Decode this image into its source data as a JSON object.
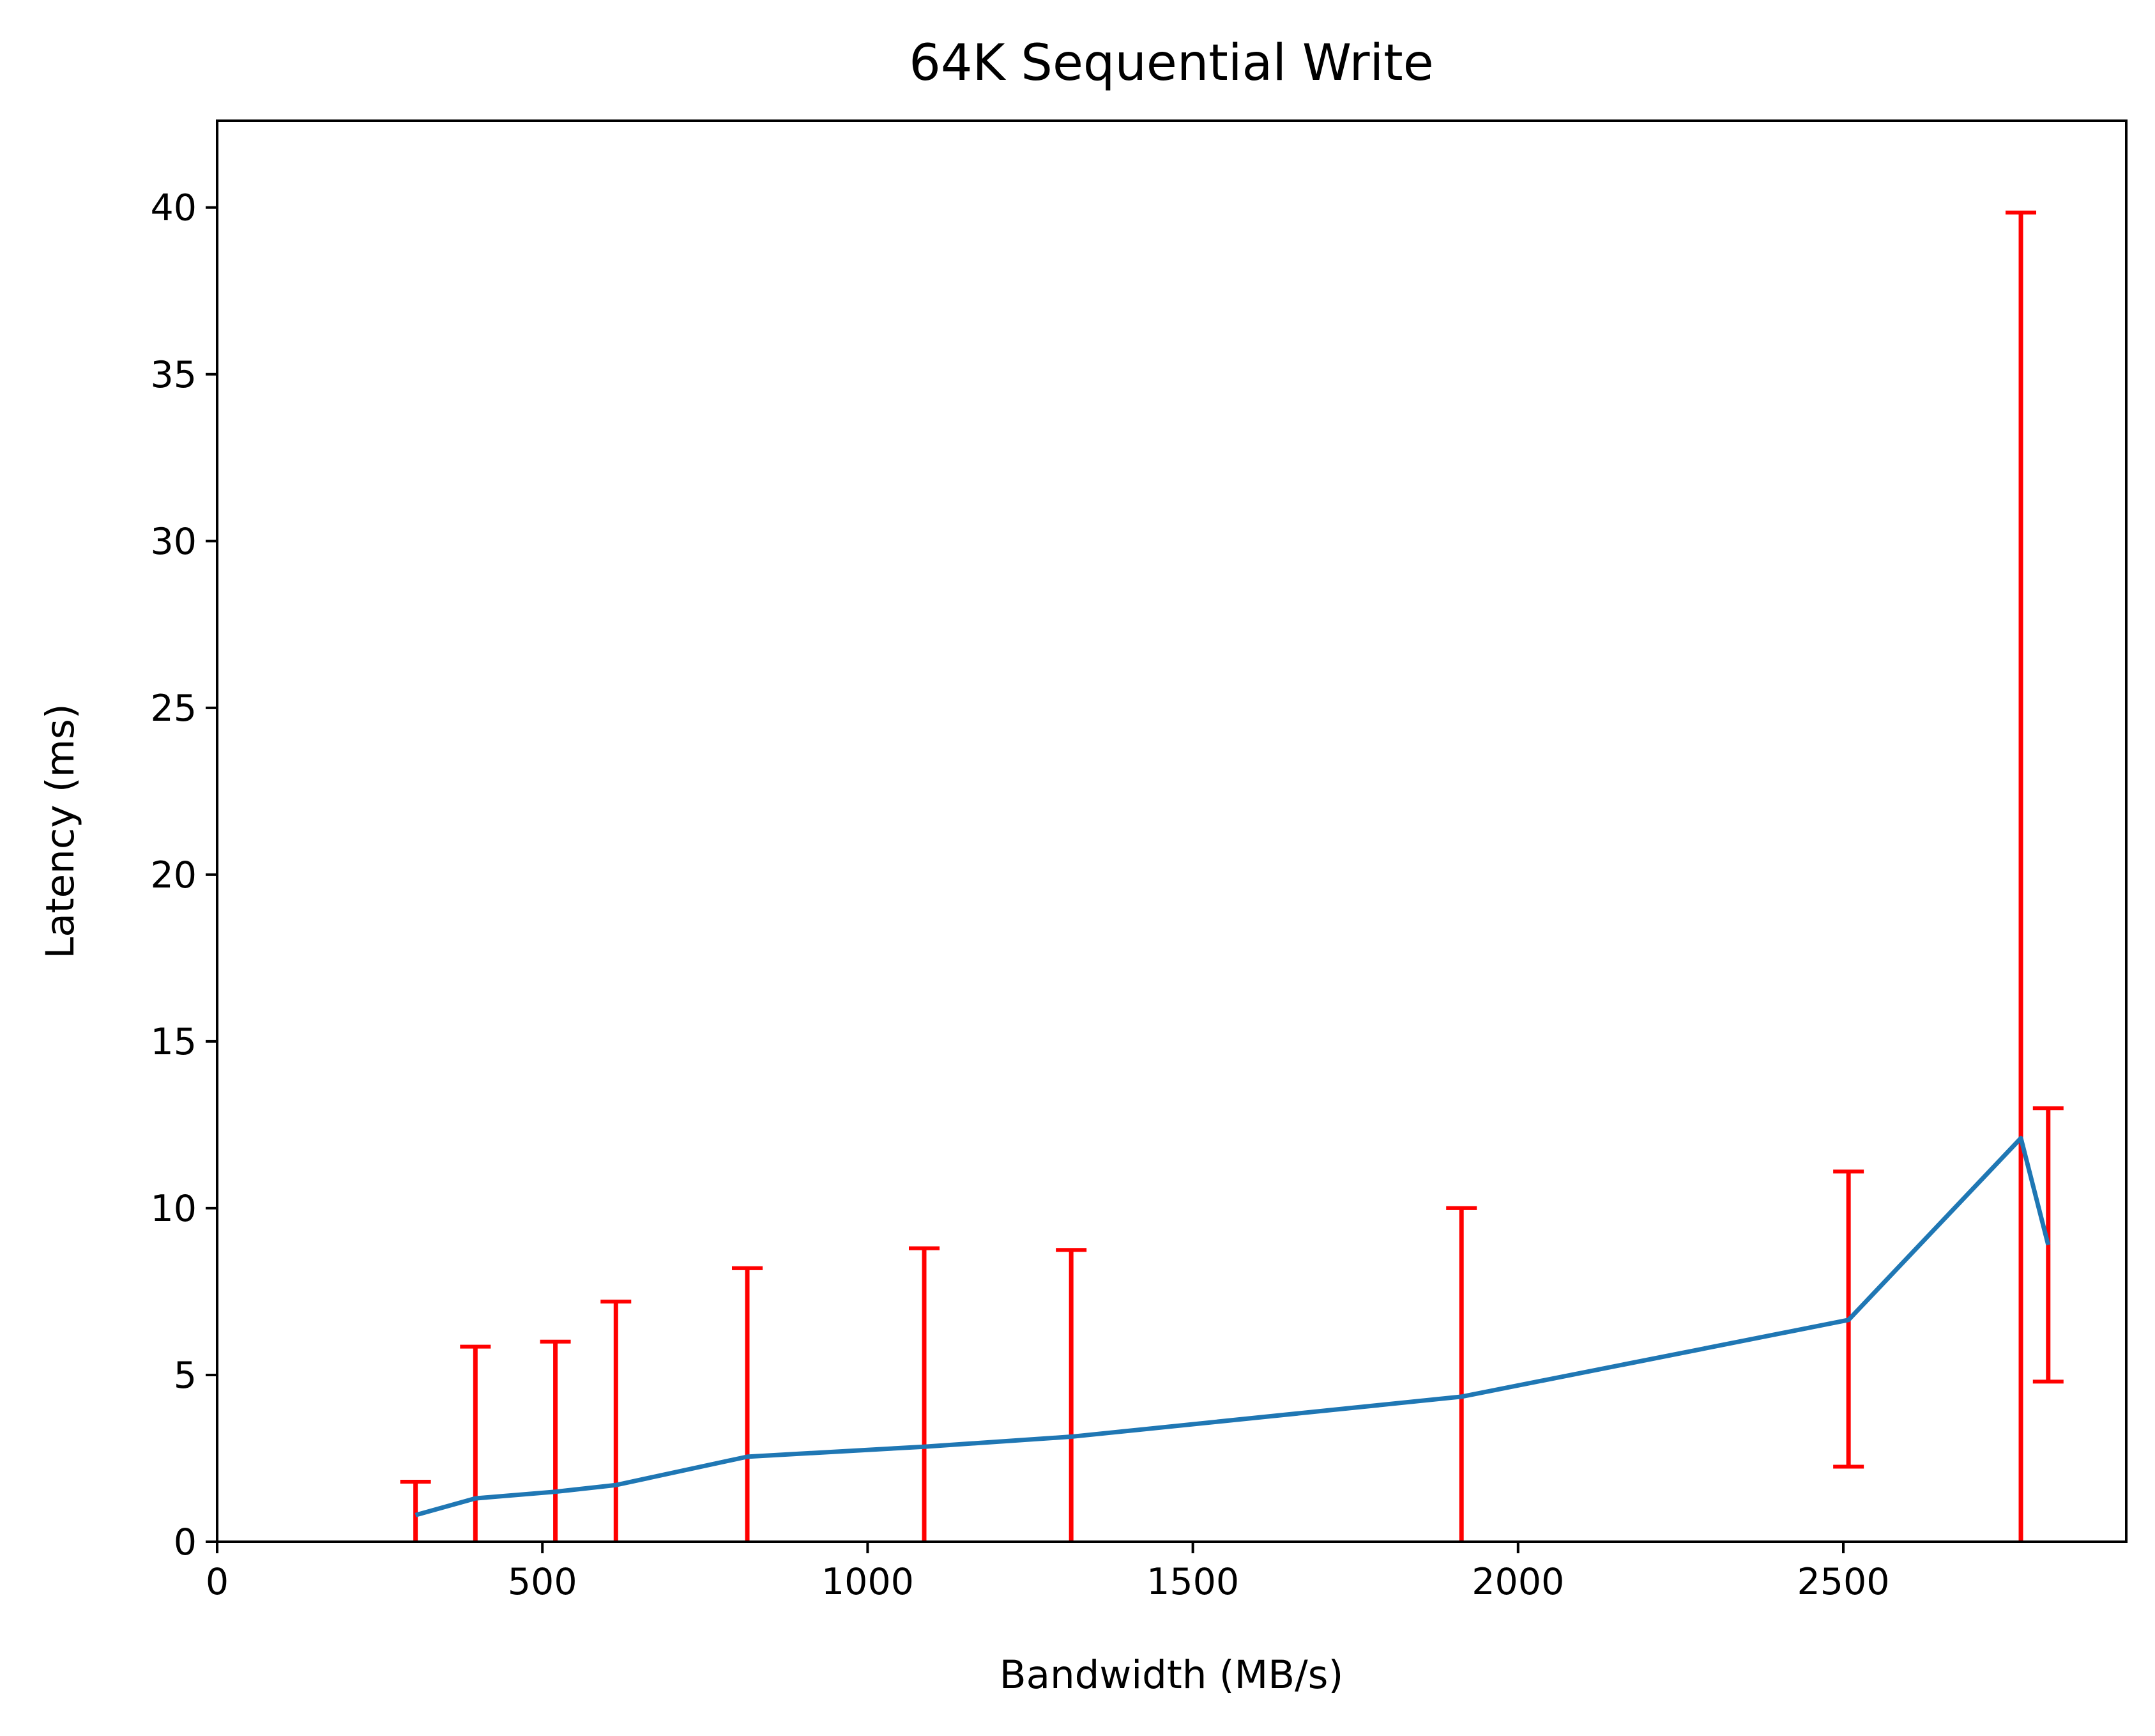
{
  "chart_data": {
    "type": "line",
    "title": "64K  Sequential Write",
    "xlabel": "Bandwidth (MB/s)",
    "ylabel": "Latency (ms)",
    "xlim": [
      0,
      2935
    ],
    "ylim": [
      0,
      42.6
    ],
    "xticks": [
      0,
      500,
      1000,
      1500,
      2000,
      2500
    ],
    "yticks": [
      0,
      5,
      10,
      15,
      20,
      25,
      30,
      35,
      40
    ],
    "grid": false,
    "legend": "none",
    "colors": {
      "line": "#1f77b4",
      "error_bars": "#ff0000"
    },
    "series": [
      {
        "x": [
          305,
          397,
          520,
          613,
          815,
          1087,
          1313,
          1913,
          2508,
          2773,
          2815
        ],
        "y": [
          0.8,
          1.3,
          1.5,
          1.7,
          2.55,
          2.85,
          3.15,
          4.35,
          6.65,
          12.1,
          8.9
        ],
        "err_low": [
          0,
          0,
          0,
          0,
          0,
          0,
          0,
          0,
          2.25,
          0,
          4.8
        ],
        "err_high": [
          1.8,
          5.85,
          6.0,
          7.2,
          8.2,
          8.8,
          8.75,
          10.0,
          11.1,
          39.85,
          13.0
        ]
      }
    ]
  }
}
